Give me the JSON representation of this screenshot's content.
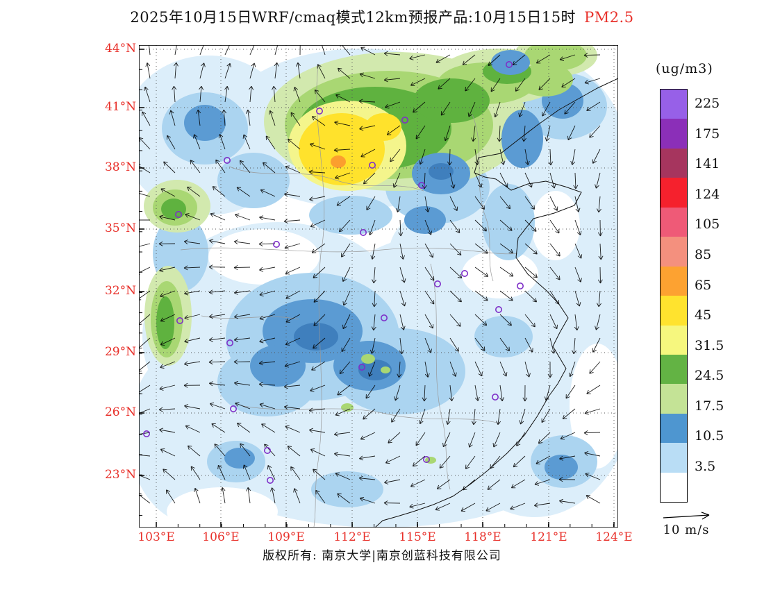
{
  "title": {
    "main": "2025年10月15日WRF/cmaq模式12km预报产品:10月15日15时",
    "pollutant": "PM2.5"
  },
  "axes": {
    "lat_labels": [
      "44°N",
      "41°N",
      "38°N",
      "35°N",
      "32°N",
      "29°N",
      "26°N",
      "23°N"
    ],
    "lon_labels": [
      "103°E",
      "106°E",
      "109°E",
      "112°E",
      "115°E",
      "118°E",
      "121°E",
      "124°E"
    ],
    "label_color": "#e8302a"
  },
  "legend": {
    "title": "(ug/m3)",
    "ticks": [
      "225",
      "175",
      "141",
      "124",
      "105",
      "85",
      "65",
      "45",
      "31.5",
      "24.5",
      "17.5",
      "10.5",
      "3.5"
    ],
    "band_colors": [
      "#9760E8",
      "#8B2FB8",
      "#A6355E",
      "#F5212D",
      "#EF5A77",
      "#F4907E",
      "#FDA231",
      "#FFE32E",
      "#F6F77E",
      "#63B344",
      "#C4E396",
      "#4E96D0",
      "#B9DDF5",
      "#FFFFFF"
    ]
  },
  "wind_scale": {
    "label": "10 m/s"
  },
  "footer": {
    "credit": "版权所有: 南京大学|南京创蓝科技有限公司"
  },
  "colors": {
    "title_highlight": "#e8302a",
    "axis_labels": "#e8302a",
    "station_marker": "#7E2FC8"
  }
}
